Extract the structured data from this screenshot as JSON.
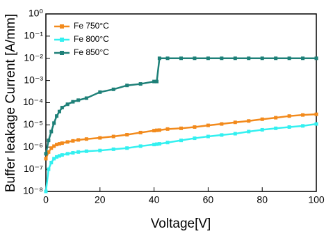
{
  "chart_data": {
    "type": "line",
    "yscale": "log",
    "x_label": "Voltage[V]",
    "y_label": "Buffer leakage Current [A/mm]",
    "x": [
      0,
      1,
      2,
      3,
      4,
      5,
      6,
      8,
      10,
      12,
      15,
      20,
      25,
      30,
      35,
      40,
      41,
      42,
      45,
      50,
      55,
      60,
      65,
      70,
      75,
      80,
      85,
      90,
      95,
      100
    ],
    "series": [
      {
        "name": "Fe 750°C",
        "color": "#f28a1c",
        "values": [
          3e-07,
          6e-07,
          9e-07,
          1.1e-06,
          1.3e-06,
          1.4e-06,
          1.5e-06,
          1.7e-06,
          1.9e-06,
          2.1e-06,
          2.3e-06,
          2.6e-06,
          3e-06,
          3.6e-06,
          4.5e-06,
          5.5e-06,
          5.7e-06,
          5.8e-06,
          6.5e-06,
          7e-06,
          8e-06,
          9.5e-06,
          1.1e-05,
          1.3e-05,
          1.5e-05,
          1.8e-05,
          2.1e-05,
          2.5e-05,
          2.8e-05,
          3e-05
        ]
      },
      {
        "name": "Fe 800°C",
        "color": "#33f0f0",
        "values": [
          1e-08,
          1e-07,
          2e-07,
          3e-07,
          3.6e-07,
          4e-07,
          4.4e-07,
          5e-07,
          5.5e-07,
          6e-07,
          6.5e-07,
          7e-07,
          8e-07,
          9e-07,
          1.1e-06,
          1.3e-06,
          1.35e-06,
          1.4e-06,
          1.6e-06,
          2e-06,
          2.5e-06,
          3e-06,
          3.5e-06,
          4e-06,
          5e-06,
          6e-06,
          7e-06,
          8e-06,
          9e-06,
          1.1e-05
        ]
      },
      {
        "name": "Fe 850°C",
        "color": "#1e8078",
        "values": [
          5e-07,
          2e-06,
          5e-06,
          1.2e-05,
          2.5e-05,
          4e-05,
          6e-05,
          8.5e-05,
          0.00011,
          0.00013,
          0.00016,
          0.0003,
          0.0004,
          0.0006,
          0.0007,
          0.0009,
          0.0009,
          0.01,
          0.01,
          0.01,
          0.01,
          0.01,
          0.01,
          0.01,
          0.01,
          0.01,
          0.01,
          0.01,
          0.01,
          0.01
        ]
      }
    ],
    "xlim": [
      0,
      100
    ],
    "xticks": [
      0,
      20,
      40,
      60,
      80,
      100
    ],
    "ylim": [
      1e-08,
      1
    ],
    "yticks": [
      {
        "value": 1e-08,
        "label": "10⁻⁸"
      },
      {
        "value": 1e-07,
        "label": "10⁻⁷"
      },
      {
        "value": 1e-06,
        "label": "10⁻⁶"
      },
      {
        "value": 1e-05,
        "label": "10⁻⁵"
      },
      {
        "value": 0.0001,
        "label": "10⁻⁴"
      },
      {
        "value": 0.001,
        "label": "10⁻³"
      },
      {
        "value": 0.01,
        "label": "10⁻²"
      },
      {
        "value": 0.1,
        "label": "10⁻¹"
      },
      {
        "value": 1,
        "label": "10⁰"
      }
    ],
    "legend": "upper-left"
  }
}
